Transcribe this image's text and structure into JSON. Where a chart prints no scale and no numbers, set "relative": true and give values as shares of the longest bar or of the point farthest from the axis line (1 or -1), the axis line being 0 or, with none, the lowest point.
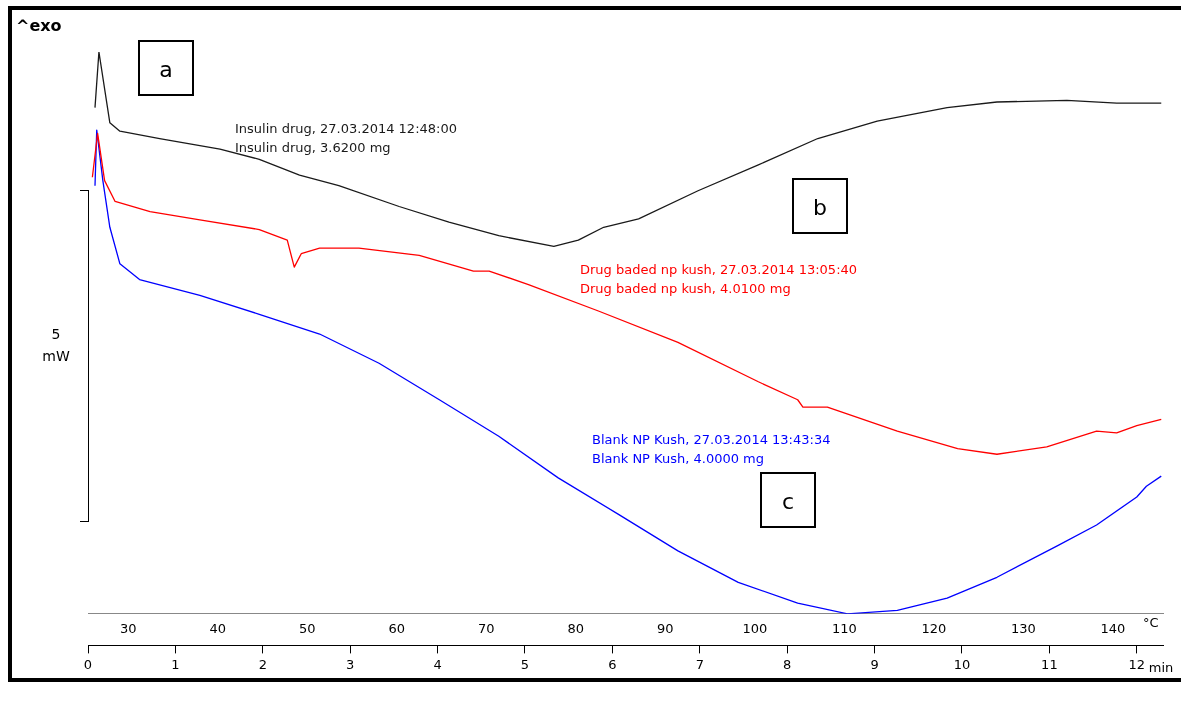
{
  "chart_data": {
    "type": "line",
    "title": "^exo",
    "ylabel": "5 mW",
    "xlabel": "min",
    "x2label": "°C",
    "relative": true,
    "xlim": [
      0,
      12.3
    ],
    "xticks": [
      0,
      1,
      2,
      3,
      4,
      5,
      6,
      7,
      8,
      9,
      10,
      11,
      12
    ],
    "x2lim": [
      25.5,
      145.6
    ],
    "x2ticks": [
      30,
      40,
      50,
      60,
      70,
      80,
      90,
      100,
      110,
      120,
      130,
      140
    ],
    "grid": false,
    "legend": false,
    "annotations": [
      "a",
      "b",
      "c"
    ],
    "series": [
      {
        "name": "Insulin drug, 27.03.2014 12:48:00\nInsulin drug, 3.6200 mg",
        "color": "#1a1a1a",
        "x": [
          0.08,
          0.125,
          0.25,
          0.365,
          0.82,
          1.51,
          1.96,
          2.42,
          2.87,
          3.56,
          4.13,
          4.7,
          5.33,
          5.61,
          5.9,
          6.3,
          6.98,
          7.67,
          8.35,
          9.03,
          9.83,
          10.4,
          11.2,
          11.77,
          12.28
        ],
        "values": [
          0.901,
          1.0,
          0.874,
          0.859,
          0.846,
          0.827,
          0.809,
          0.781,
          0.762,
          0.725,
          0.697,
          0.673,
          0.654,
          0.665,
          0.688,
          0.703,
          0.753,
          0.799,
          0.846,
          0.877,
          0.901,
          0.911,
          0.914,
          0.909,
          0.909
        ]
      },
      {
        "name": "Drug baded np kush, 27.03.2014 13:05:40\nDrug baded np kush, 4.0100 mg",
        "color": "#ff0000",
        "x": [
          0.05,
          0.11,
          0.19,
          0.31,
          0.71,
          1.28,
          1.96,
          2.28,
          2.36,
          2.44,
          2.65,
          3.1,
          3.79,
          4.41,
          4.59,
          5.04,
          5.84,
          6.75,
          7.67,
          8.12,
          8.18,
          8.46,
          9.26,
          9.95,
          10.4,
          10.97,
          11.54,
          11.77,
          12.0,
          12.28
        ],
        "values": [
          0.777,
          0.855,
          0.771,
          0.734,
          0.716,
          0.701,
          0.684,
          0.665,
          0.617,
          0.641,
          0.651,
          0.651,
          0.638,
          0.61,
          0.61,
          0.586,
          0.539,
          0.483,
          0.413,
          0.381,
          0.368,
          0.368,
          0.325,
          0.294,
          0.284,
          0.297,
          0.325,
          0.322,
          0.335,
          0.346
        ]
      },
      {
        "name": "Blank NP Kush, 27.03.2014 13:43:34\nBlank NP Kush, 4.0000 mg",
        "color": "#0000ff",
        "x": [
          0.08,
          0.1,
          0.17,
          0.25,
          0.365,
          0.59,
          1.28,
          1.96,
          2.65,
          3.33,
          4.02,
          4.7,
          5.38,
          6.07,
          6.75,
          7.44,
          8.12,
          8.69,
          9.26,
          9.83,
          10.4,
          11.09,
          11.54,
          12.0,
          12.11,
          12.28
        ],
        "values": [
          0.762,
          0.861,
          0.771,
          0.688,
          0.623,
          0.595,
          0.567,
          0.533,
          0.498,
          0.446,
          0.381,
          0.316,
          0.242,
          0.177,
          0.112,
          0.056,
          0.019,
          0,
          0.006,
          0.028,
          0.065,
          0.121,
          0.158,
          0.208,
          0.227,
          0.245
        ]
      }
    ]
  }
}
